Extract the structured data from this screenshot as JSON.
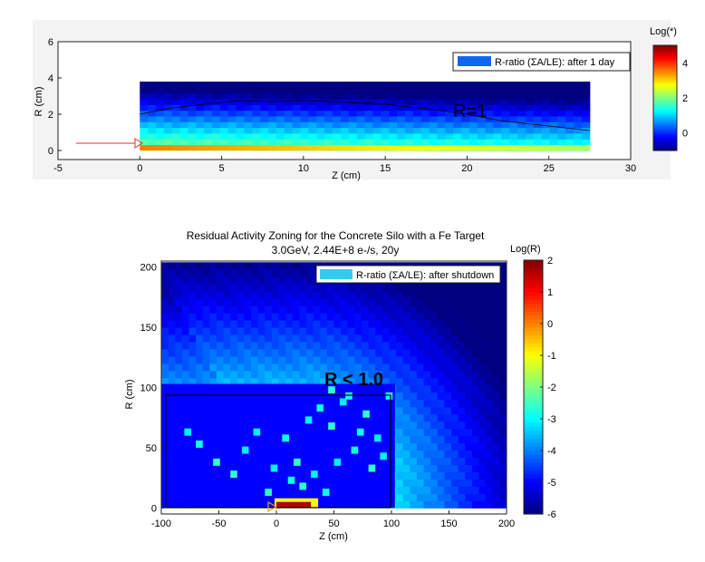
{
  "chart_data": [
    {
      "type": "heatmap",
      "title": "",
      "xlabel": "Z (cm)",
      "ylabel": "R (cm)",
      "xlim": [
        -5,
        30
      ],
      "ylim": [
        -0.5,
        6
      ],
      "xticks": [
        "-5",
        "0",
        "5",
        "10",
        "15",
        "20",
        "25",
        "30"
      ],
      "yticks": [
        "0",
        "2",
        "4",
        "6"
      ],
      "colorbar": {
        "label": "Log(*)",
        "range": [
          -1,
          5
        ],
        "ticks": [
          "0",
          "2",
          "4"
        ]
      },
      "legend": {
        "label": "R-ratio (ΣA/LE): after 1 day",
        "color": "#1166ee",
        "position": "top-right"
      },
      "annotation": "R=1",
      "grid": false,
      "contour": {
        "level": "R=1",
        "z": [
          0,
          2,
          4,
          6,
          8,
          10,
          12,
          15,
          18,
          20,
          22,
          25,
          27.5
        ],
        "r": [
          2.0,
          2.35,
          2.55,
          2.75,
          2.7,
          2.75,
          2.7,
          2.55,
          2.25,
          2.0,
          1.65,
          1.35,
          1.1
        ]
      },
      "field": {
        "z_range": [
          0,
          27.5
        ],
        "r_range": [
          0,
          3.8
        ],
        "beam_band": {
          "r": [
            0,
            0.3
          ],
          "log_value": 3.5
        }
      }
    },
    {
      "type": "heatmap",
      "title": "Residual Activity Zoning for the Concrete Silo with a Fe Target",
      "subtitle": "3.0GeV, 2.44E+8 e-/s, 20y",
      "xlabel": "Z (cm)",
      "ylabel": "R (cm)",
      "xlim": [
        -100,
        200
      ],
      "ylim": [
        -5,
        205
      ],
      "xticks": [
        "-100",
        "-50",
        "0",
        "50",
        "100",
        "150",
        "200"
      ],
      "yticks": [
        "0",
        "50",
        "100",
        "150",
        "200"
      ],
      "colorbar": {
        "label": "Log(R)",
        "range": [
          -6,
          2
        ],
        "ticks": [
          "2",
          "1",
          "0",
          "-1",
          "-2",
          "-3",
          "-4",
          "-5",
          "-6"
        ]
      },
      "legend": {
        "label": "R-ratio (ΣA/LE): after shutdown",
        "color": "#33ccee",
        "position": "top-right"
      },
      "annotation": "R < 1.0",
      "grid": false,
      "field": {
        "z_range": [
          -100,
          200
        ],
        "r_range": [
          0,
          200
        ],
        "low_zone": {
          "z": [
            -100,
            103
          ],
          "r": [
            0,
            103
          ],
          "log_value": -5
        },
        "target": {
          "z": [
            0,
            30
          ],
          "r": [
            0,
            5
          ],
          "log_value": 2
        }
      }
    }
  ]
}
